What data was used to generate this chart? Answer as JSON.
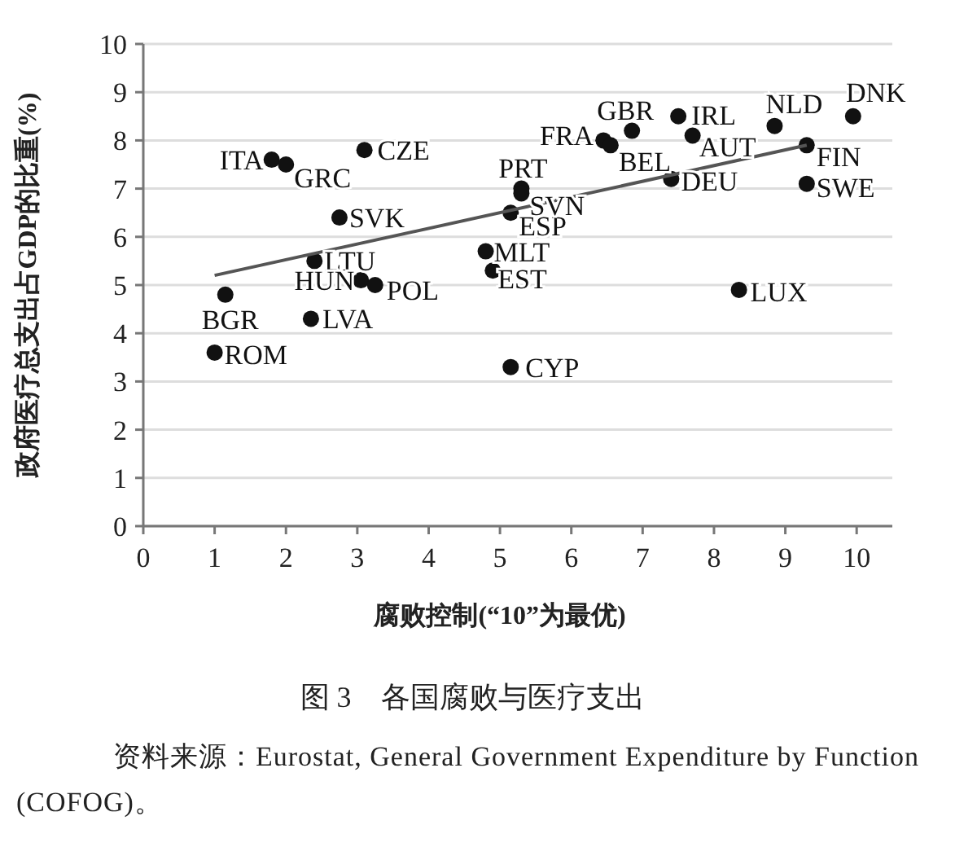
{
  "chart_data": {
    "type": "scatter",
    "title": "图 3　各国腐败与医疗支出",
    "xlabel": "腐败控制(“10”为最优)",
    "ylabel": "政府医疗总支出占GDP的比重(%)",
    "xlim": [
      0,
      10.5
    ],
    "ylim": [
      0,
      10
    ],
    "xticks": [
      0,
      1,
      2,
      3,
      4,
      5,
      6,
      7,
      8,
      9,
      10
    ],
    "yticks": [
      0,
      1,
      2,
      3,
      4,
      5,
      6,
      7,
      8,
      9,
      10
    ],
    "grid": "y",
    "marker": "circle",
    "series": [
      {
        "color": "#111111",
        "x": [
          1.8,
          2.0,
          3.1,
          2.75,
          2.4,
          3.05,
          3.25,
          2.35,
          1.15,
          1.0,
          5.15,
          4.8,
          4.9,
          5.15,
          5.3,
          5.3,
          6.45,
          6.55,
          6.85,
          7.5,
          7.7,
          7.4,
          8.85,
          9.95,
          9.3,
          9.3,
          8.35
        ],
        "values": [
          7.6,
          7.5,
          7.8,
          6.4,
          5.5,
          5.1,
          5.0,
          4.3,
          4.8,
          3.6,
          3.3,
          5.7,
          5.3,
          6.5,
          7.0,
          6.9,
          8.0,
          7.9,
          8.2,
          8.5,
          8.1,
          7.2,
          8.3,
          8.5,
          7.9,
          7.1,
          4.9
        ]
      },
      {
        "type": "line",
        "marker": "none",
        "color": "#555555",
        "x": [
          1.0,
          9.3
        ],
        "values": [
          5.2,
          7.9
        ]
      }
    ],
    "annotations": [
      {
        "text": "ITA",
        "x": 1.8,
        "y": 7.6
      },
      {
        "text": "GRC",
        "x": 2.0,
        "y": 7.5
      },
      {
        "text": "CZE",
        "x": 3.1,
        "y": 7.8
      },
      {
        "text": "SVK",
        "x": 2.75,
        "y": 6.4
      },
      {
        "text": "LTU",
        "x": 2.4,
        "y": 5.5
      },
      {
        "text": "HUN",
        "x": 3.05,
        "y": 5.1
      },
      {
        "text": "POL",
        "x": 3.25,
        "y": 5.0
      },
      {
        "text": "LVA",
        "x": 2.35,
        "y": 4.3
      },
      {
        "text": "BGR",
        "x": 1.15,
        "y": 4.8
      },
      {
        "text": "ROM",
        "x": 1.0,
        "y": 3.6
      },
      {
        "text": "CYP",
        "x": 5.15,
        "y": 3.3
      },
      {
        "text": "MLT",
        "x": 4.8,
        "y": 5.7
      },
      {
        "text": "EST",
        "x": 4.9,
        "y": 5.3
      },
      {
        "text": "ESP",
        "x": 5.15,
        "y": 6.5
      },
      {
        "text": "PRT",
        "x": 5.3,
        "y": 7.0
      },
      {
        "text": "SVN",
        "x": 5.3,
        "y": 6.9
      },
      {
        "text": "FRA",
        "x": 6.45,
        "y": 8.0
      },
      {
        "text": "BEL",
        "x": 6.55,
        "y": 7.9
      },
      {
        "text": "GBR",
        "x": 6.85,
        "y": 8.2
      },
      {
        "text": "IRL",
        "x": 7.5,
        "y": 8.5
      },
      {
        "text": "AUT",
        "x": 7.7,
        "y": 8.1
      },
      {
        "text": "DEU",
        "x": 7.4,
        "y": 7.2
      },
      {
        "text": "NLD",
        "x": 8.85,
        "y": 8.3
      },
      {
        "text": "DNK",
        "x": 9.95,
        "y": 8.5
      },
      {
        "text": "FIN",
        "x": 9.3,
        "y": 7.9
      },
      {
        "text": "SWE",
        "x": 9.3,
        "y": 7.1
      },
      {
        "text": "LUX",
        "x": 8.35,
        "y": 4.9
      },
      "资料来源：Eurostat, General Government Expenditure by Function (COFOG)。"
    ]
  }
}
